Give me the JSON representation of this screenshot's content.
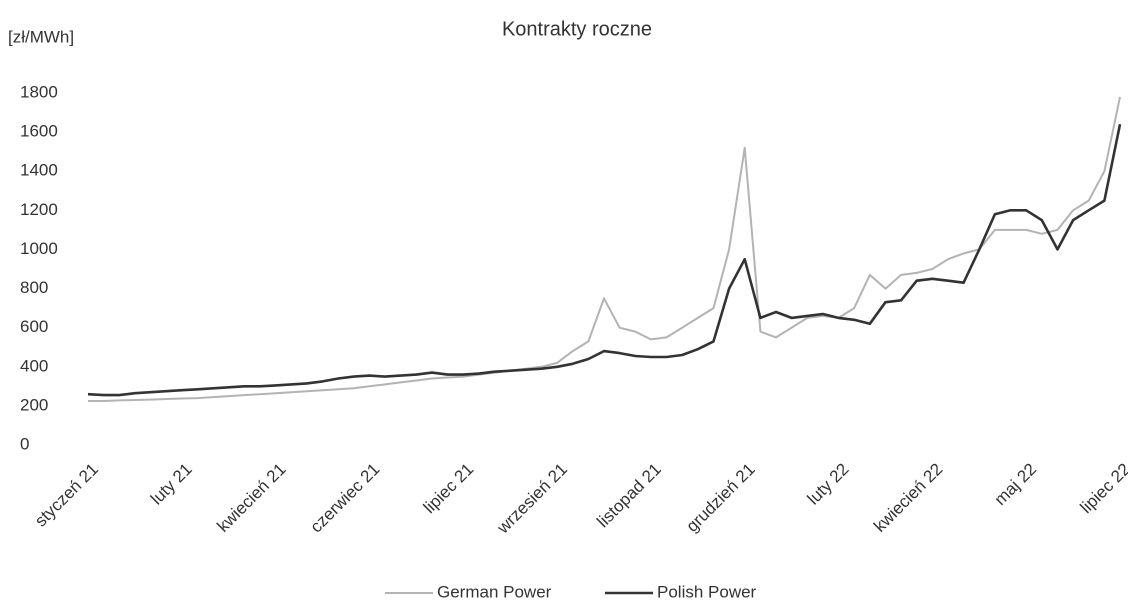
{
  "chart_data": {
    "type": "line",
    "title": "Kontrakty roczne",
    "y_label": "[zł/MWh]",
    "categories": [
      "styczeń 21",
      null,
      null,
      null,
      null,
      null,
      "luty 21",
      null,
      null,
      null,
      null,
      null,
      "kwiecień 21",
      null,
      null,
      null,
      null,
      null,
      "czerwiec 21",
      null,
      null,
      null,
      null,
      null,
      "lipiec 21",
      null,
      null,
      null,
      null,
      null,
      "wrzesień 21",
      null,
      null,
      null,
      null,
      null,
      "listopad 21",
      null,
      null,
      null,
      null,
      null,
      "grudzień 21",
      null,
      null,
      null,
      null,
      null,
      "luty 22",
      null,
      null,
      null,
      null,
      null,
      "kwiecień 22",
      null,
      null,
      null,
      null,
      null,
      "maj 22",
      null,
      null,
      null,
      null,
      null,
      "lipiec 22"
    ],
    "series": [
      {
        "name": "German Power",
        "color": "#b3b3b3",
        "values": [
          225,
          225,
          228,
          230,
          232,
          235,
          238,
          240,
          245,
          250,
          255,
          260,
          265,
          270,
          275,
          280,
          285,
          290,
          300,
          310,
          320,
          330,
          340,
          345,
          350,
          360,
          370,
          380,
          390,
          400,
          420,
          480,
          530,
          750,
          600,
          580,
          540,
          550,
          600,
          650,
          700,
          1000,
          1520,
          580,
          550,
          600,
          650,
          660,
          650,
          700,
          870,
          800,
          870,
          880,
          900,
          950,
          980,
          1000,
          1100,
          1100,
          1100,
          1080,
          1100,
          1200,
          1250,
          1400,
          1780
        ]
      },
      {
        "name": "Polish Power",
        "color": "#333333",
        "values": [
          260,
          255,
          255,
          265,
          270,
          275,
          280,
          285,
          290,
          295,
          300,
          300,
          305,
          310,
          315,
          325,
          340,
          350,
          355,
          350,
          355,
          360,
          370,
          360,
          360,
          365,
          375,
          380,
          385,
          390,
          400,
          415,
          440,
          480,
          470,
          455,
          450,
          450,
          460,
          490,
          530,
          800,
          950,
          650,
          680,
          650,
          660,
          670,
          650,
          640,
          620,
          730,
          740,
          840,
          850,
          840,
          830,
          1000,
          1180,
          1200,
          1200,
          1150,
          1000,
          1150,
          1200,
          1250,
          1640
        ]
      }
    ],
    "ylim": [
      0,
      1800
    ],
    "yticks": [
      0,
      200,
      400,
      600,
      800,
      1000,
      1200,
      1400,
      1600,
      1800
    ],
    "grid": false,
    "legend": "bottom"
  }
}
